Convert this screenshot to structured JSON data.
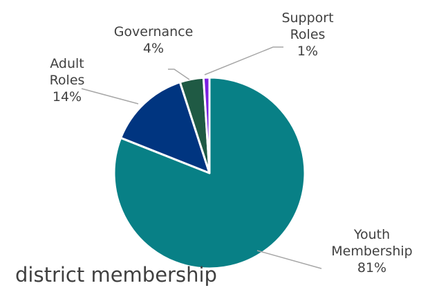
{
  "chart_data": {
    "type": "pie",
    "title": "district membership",
    "slices": [
      {
        "name": "Youth Membership",
        "value": 81,
        "label_lines": [
          "Youth",
          "Membership",
          "81%"
        ],
        "color": "#088086"
      },
      {
        "name": "Adult Roles",
        "value": 14,
        "label_lines": [
          "Adult",
          "Roles",
          "14%"
        ],
        "color": "#003580"
      },
      {
        "name": "Governance",
        "value": 4,
        "label_lines": [
          "Governance",
          "4%"
        ],
        "color": "#1f5a44"
      },
      {
        "name": "Support Roles",
        "value": 1,
        "label_lines": [
          "Support",
          "Roles",
          "1%"
        ],
        "color": "#7a1fe0"
      }
    ],
    "legend": "none",
    "leader_line_color": "#a6a6a6"
  }
}
